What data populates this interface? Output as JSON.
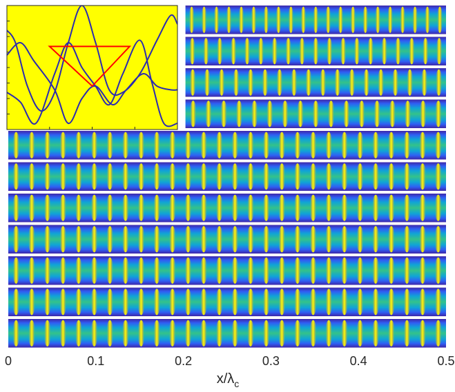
{
  "chart_data": {
    "type": "heatmap",
    "description_free": true,
    "xlabel": "x/λ",
    "xlabel_main": "x/λ",
    "xlabel_sub": "c",
    "xlim": [
      0,
      0.5
    ],
    "x_ticks": [
      0,
      0.1,
      0.2,
      0.3,
      0.4,
      0.5
    ],
    "x_tick_labels": [
      "0",
      "0.1",
      "0.2",
      "0.3",
      "0.4",
      "0.5"
    ],
    "colormap": [
      "#3e26a8",
      "#2f5ff4",
      "#10a4d6",
      "#33c28a",
      "#ccbf30",
      "#fadd22",
      "#f9fb0e"
    ],
    "strips": [
      {
        "row": 1,
        "span": "right",
        "x_range": [
          0.2,
          0.5
        ],
        "stripes": 21
      },
      {
        "row": 2,
        "span": "right",
        "x_range": [
          0.2,
          0.5
        ],
        "stripes": 19
      },
      {
        "row": 3,
        "span": "right",
        "x_range": [
          0.2,
          0.5
        ],
        "stripes": 18
      },
      {
        "row": 4,
        "span": "right",
        "x_range": [
          0.2,
          0.5
        ],
        "stripes": 17
      },
      {
        "row": 5,
        "span": "full",
        "x_range": [
          0,
          0.5
        ],
        "stripes": 28
      },
      {
        "row": 6,
        "span": "full",
        "x_range": [
          0,
          0.5
        ],
        "stripes": 28
      },
      {
        "row": 7,
        "span": "full",
        "x_range": [
          0,
          0.5
        ],
        "stripes": 28
      },
      {
        "row": 8,
        "span": "full",
        "x_range": [
          0,
          0.5
        ],
        "stripes": 28
      },
      {
        "row": 9,
        "span": "full",
        "x_range": [
          0,
          0.5
        ],
        "stripes": 28
      },
      {
        "row": 10,
        "span": "full",
        "x_range": [
          0,
          0.5
        ],
        "stripes": 28
      },
      {
        "row": 11,
        "span": "full",
        "x_range": [
          0,
          0.5
        ],
        "stripes": 28
      }
    ],
    "inset": {
      "type": "line",
      "background": "#ffff00",
      "curve_color": "#2b2bb0",
      "triangle_color": "#ff0000",
      "curves": [
        {
          "name": "",
          "points": [
            [
              0,
              0.8
            ],
            [
              0.05,
              0.7
            ],
            [
              0.12,
              0.35
            ],
            [
              0.2,
              0.15
            ],
            [
              0.28,
              0.3
            ],
            [
              0.36,
              0.7
            ],
            [
              0.44,
              1.0
            ],
            [
              0.52,
              0.7
            ],
            [
              0.6,
              0.32
            ],
            [
              0.68,
              0.3
            ],
            [
              0.78,
              0.45
            ],
            [
              0.88,
              0.72
            ],
            [
              0.96,
              0.92
            ],
            [
              1.0,
              0.85
            ]
          ]
        },
        {
          "name": "",
          "points": [
            [
              0,
              0.3
            ],
            [
              0.08,
              0.22
            ],
            [
              0.17,
              0.05
            ],
            [
              0.28,
              0.45
            ],
            [
              0.36,
              0.7
            ],
            [
              0.44,
              0.5
            ],
            [
              0.52,
              0.35
            ],
            [
              0.6,
              0.2
            ],
            [
              0.68,
              0.45
            ],
            [
              0.78,
              0.72
            ],
            [
              0.85,
              0.38
            ],
            [
              0.92,
              0.05
            ],
            [
              1.0,
              0.05
            ]
          ]
        },
        {
          "name": "",
          "points": [
            [
              0,
              0.6
            ],
            [
              0.08,
              0.7
            ],
            [
              0.16,
              0.55
            ],
            [
              0.28,
              0.32
            ],
            [
              0.36,
              0.05
            ],
            [
              0.44,
              0.25
            ],
            [
              0.52,
              0.35
            ],
            [
              0.62,
              0.2
            ],
            [
              0.7,
              0.32
            ],
            [
              0.8,
              0.45
            ],
            [
              0.88,
              0.35
            ],
            [
              0.96,
              0.32
            ],
            [
              1.0,
              0.32
            ]
          ]
        }
      ],
      "triangle": [
        [
          0.25,
          0.67
        ],
        [
          0.72,
          0.67
        ],
        [
          0.5,
          0.35
        ]
      ]
    }
  }
}
